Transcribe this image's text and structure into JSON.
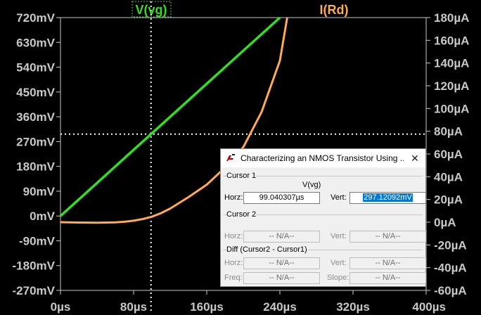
{
  "colors": {
    "background": "#000000",
    "grid_cursor": "#ffffff",
    "v_vg": "#33dd22",
    "i_rd": "#ffaa55",
    "axis_text": "#c8c8c8"
  },
  "chart_data": {
    "type": "line",
    "x_axis": {
      "min": 0,
      "max": 400,
      "unit": "µs",
      "ticks": [
        0,
        80,
        160,
        240,
        320,
        400
      ],
      "tick_labels": [
        "0µs",
        "80µs",
        "160µs",
        "240µs",
        "320µs",
        "400µs"
      ]
    },
    "y_left": {
      "min": -270,
      "max": 720,
      "unit": "mV",
      "ticks": [
        720,
        630,
        540,
        450,
        360,
        270,
        180,
        90,
        0,
        -90,
        -180,
        -270
      ],
      "tick_labels": [
        "720mV",
        "630mV",
        "540mV",
        "450mV",
        "360mV",
        "270mV",
        "180mV",
        "90mV",
        "0mV",
        "-90mV",
        "-180mV",
        "-270mV"
      ]
    },
    "y_right": {
      "min": -60,
      "max": 180,
      "unit": "µA",
      "ticks": [
        180,
        160,
        140,
        120,
        100,
        80,
        60,
        40,
        20,
        0,
        -20,
        -40,
        -60
      ],
      "tick_labels": [
        "180µA",
        "160µA",
        "140µA",
        "120µA",
        "100µA",
        "80µA",
        "60µA",
        "40µA",
        "20µA",
        "0µA",
        "-20µA",
        "-40µA",
        "-60µA"
      ]
    },
    "series": [
      {
        "name": "V(vg)",
        "axis": "left",
        "color": "#33dd22",
        "x": [
          0,
          40,
          80,
          99,
          120,
          160,
          200,
          240
        ],
        "y": [
          0,
          120,
          240,
          297,
          360,
          480,
          600,
          720
        ]
      },
      {
        "name": "I(Rd)",
        "axis": "right",
        "color": "#ffaa55",
        "x": [
          0,
          20,
          40,
          60,
          70,
          80,
          90,
          100,
          110,
          120,
          140,
          160,
          180,
          200,
          220,
          240,
          248
        ],
        "y": [
          0,
          -0.3,
          -0.5,
          -0.2,
          0.4,
          1.3,
          2.8,
          4.8,
          8,
          12,
          22,
          33,
          48,
          66,
          97,
          142,
          180
        ]
      }
    ],
    "cursor": {
      "x": 99.040307,
      "y": 297.12092
    }
  },
  "cursor_dialog": {
    "title": "Characterizing an NMOS Transistor Using ...",
    "close_glyph": "✕",
    "cursor1": {
      "label": "Cursor 1",
      "trace": "V(vg)",
      "horz_label": "Horz:",
      "horz_value": "99.040307µs",
      "vert_label": "Vert:",
      "vert_value": "297.12092mV"
    },
    "cursor2": {
      "label": "Cursor 2",
      "horz_label": "Horz:",
      "horz_value": "-- N/A--",
      "vert_label": "Vert:",
      "vert_value": "-- N/A--"
    },
    "diff": {
      "label": "Diff (Cursor2 - Cursor1)",
      "horz_label": "Horz:",
      "horz_value": "-- N/A--",
      "vert_label": "Vert:",
      "vert_value": "-- N/A--",
      "freq_label": "Freq:",
      "freq_value": "-- N/A--",
      "slope_label": "Slope:",
      "slope_value": "-- N/A--"
    }
  }
}
